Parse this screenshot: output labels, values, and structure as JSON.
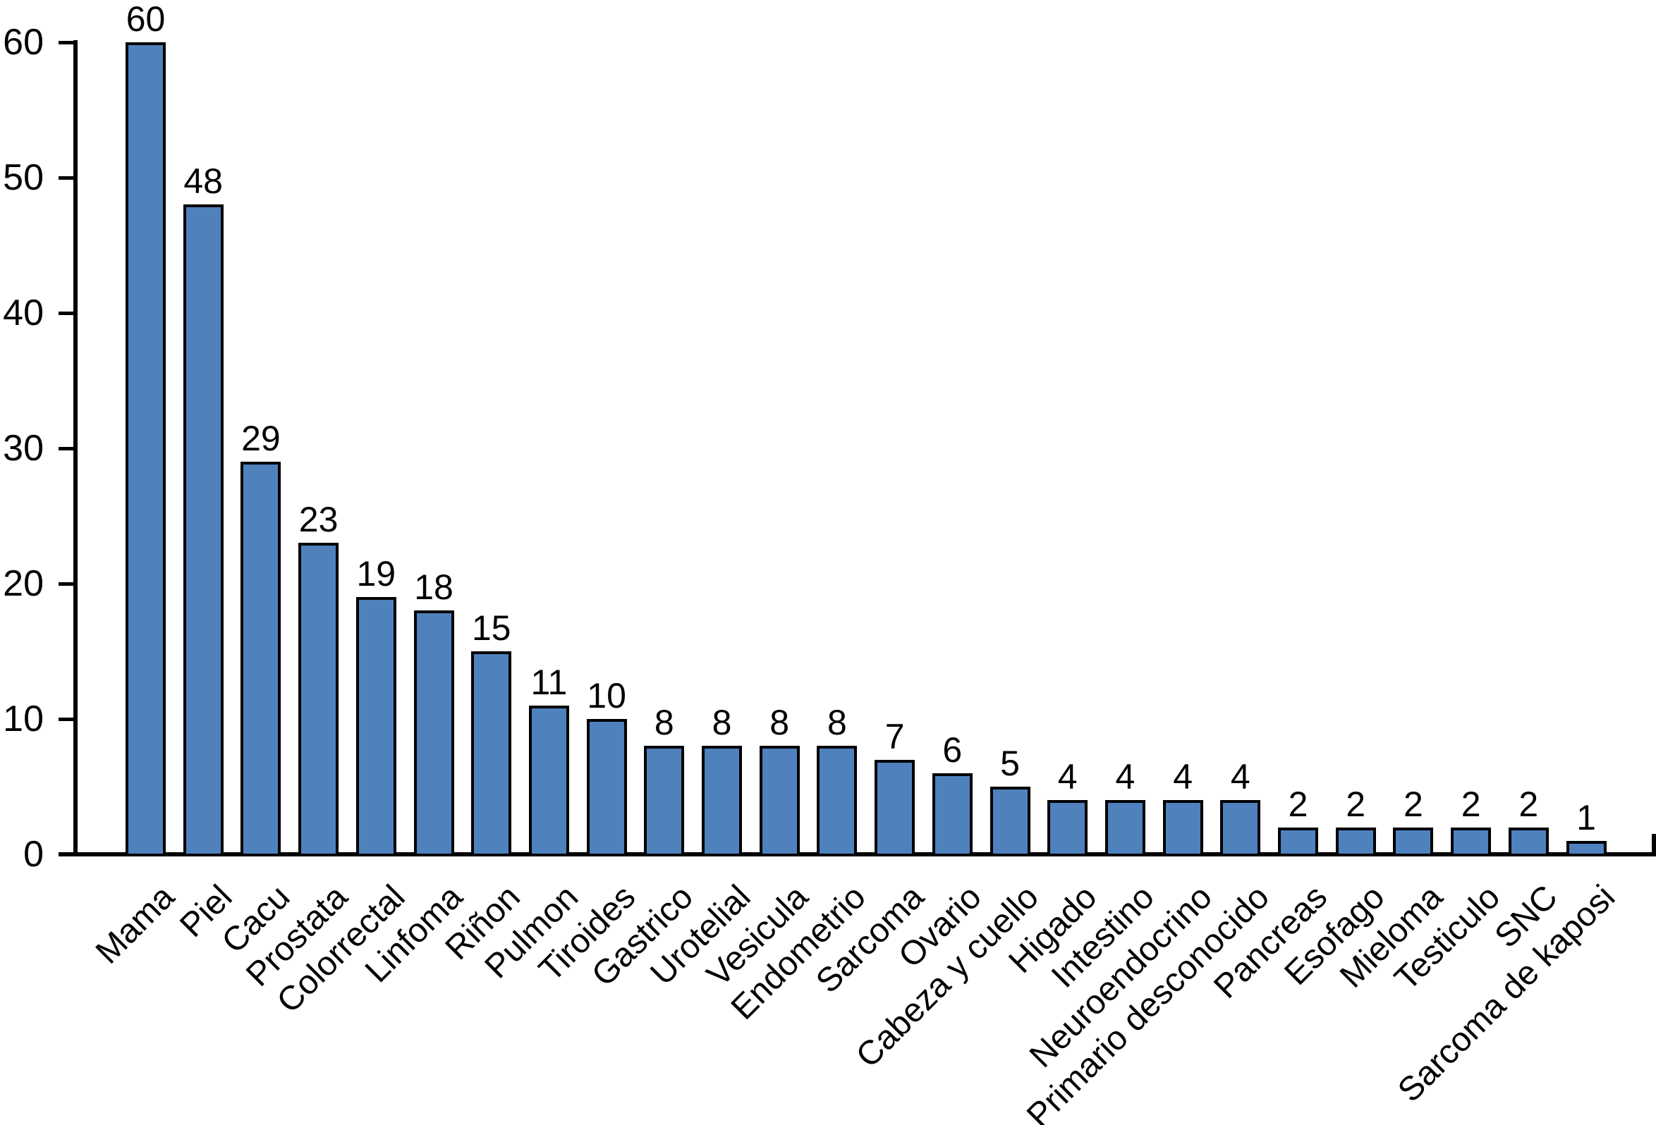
{
  "chart_data": {
    "type": "bar",
    "title": "",
    "xlabel": "",
    "ylabel": "",
    "categories": [
      "Mama",
      "Piel",
      "Cacu",
      "Prostata",
      "Colorrectal",
      "Linfoma",
      "Riñon",
      "Pulmon",
      "Tiroides",
      "Gastrico",
      "Urotelial",
      "Vesicula",
      "Endometrio",
      "Sarcoma",
      "Ovario",
      "Cabeza y cuello",
      "Higado",
      "Intestino",
      "Neuroendocrino",
      "Primario desconocido",
      "Pancreas",
      "Esofago",
      "Mieloma",
      "Testiculo",
      "SNC",
      "Sarcoma de kaposi"
    ],
    "values": [
      60,
      48,
      29,
      23,
      19,
      18,
      15,
      11,
      10,
      8,
      8,
      8,
      8,
      7,
      6,
      5,
      4,
      4,
      4,
      4,
      2,
      2,
      2,
      2,
      2,
      1
    ],
    "value_labels": [
      "60",
      "48",
      "29",
      "23",
      "19",
      "18",
      "15",
      "11",
      "10",
      "8",
      "8",
      "8",
      "8",
      "7",
      "6",
      "5",
      "4",
      "4",
      "4",
      "4",
      "2",
      "2",
      "2",
      "2",
      "2",
      "1"
    ],
    "ylim": [
      0,
      60
    ],
    "yticks": [
      0,
      10,
      20,
      30,
      40,
      50,
      60
    ],
    "grid": false,
    "legend": null,
    "bar_fill_color": "#4F81BD",
    "bar_border_color": "#000000",
    "axis_color": "#000000",
    "text_color": "#000000",
    "background_color": "#ffffff",
    "category_label_rotation_deg": 45
  }
}
